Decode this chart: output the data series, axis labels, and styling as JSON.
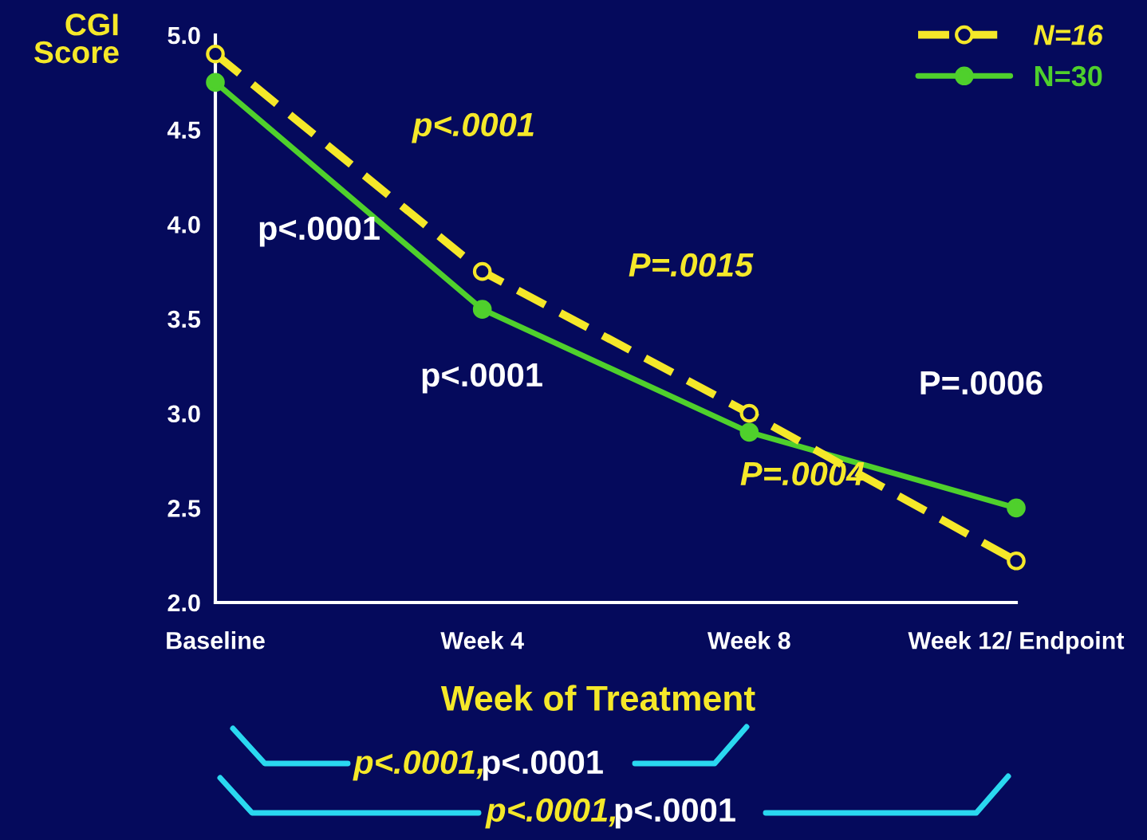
{
  "chart_data": {
    "type": "line",
    "ylabel": "CGI\nScore",
    "xlabel": "Week of Treatment",
    "categories": [
      "Baseline",
      "Week 4",
      "Week 8",
      "Week 12/ Endpoint"
    ],
    "series": [
      {
        "name": "N=16",
        "color": "#f5e829",
        "values": [
          4.9,
          3.75,
          3.0,
          2.22
        ],
        "line_style": "dashed"
      },
      {
        "name": "N=30",
        "color": "#4fd02c",
        "values": [
          4.75,
          3.55,
          2.9,
          2.5
        ],
        "line_style": "solid"
      }
    ],
    "ylim": [
      2.0,
      5.0
    ],
    "yticks": [
      {
        "value": 2.0,
        "label": "2.0"
      },
      {
        "value": 2.5,
        "label": "2.5"
      },
      {
        "value": 3.0,
        "label": "3.0"
      },
      {
        "value": 3.5,
        "label": "3.5"
      },
      {
        "value": 4.0,
        "label": "4.0"
      },
      {
        "value": 4.5,
        "label": "4.5"
      },
      {
        "value": 5.0,
        "label": "5.0"
      }
    ],
    "marker": "circle",
    "grid": false,
    "legend": "top right",
    "annotations": [
      "p<.0001",
      "p<.0001",
      "p<.0001",
      "P=.0015",
      "P=.0004",
      "P=.0006",
      "p<.0001,",
      "p<.0001",
      "p<.0001,",
      "p<.0001"
    ]
  }
}
